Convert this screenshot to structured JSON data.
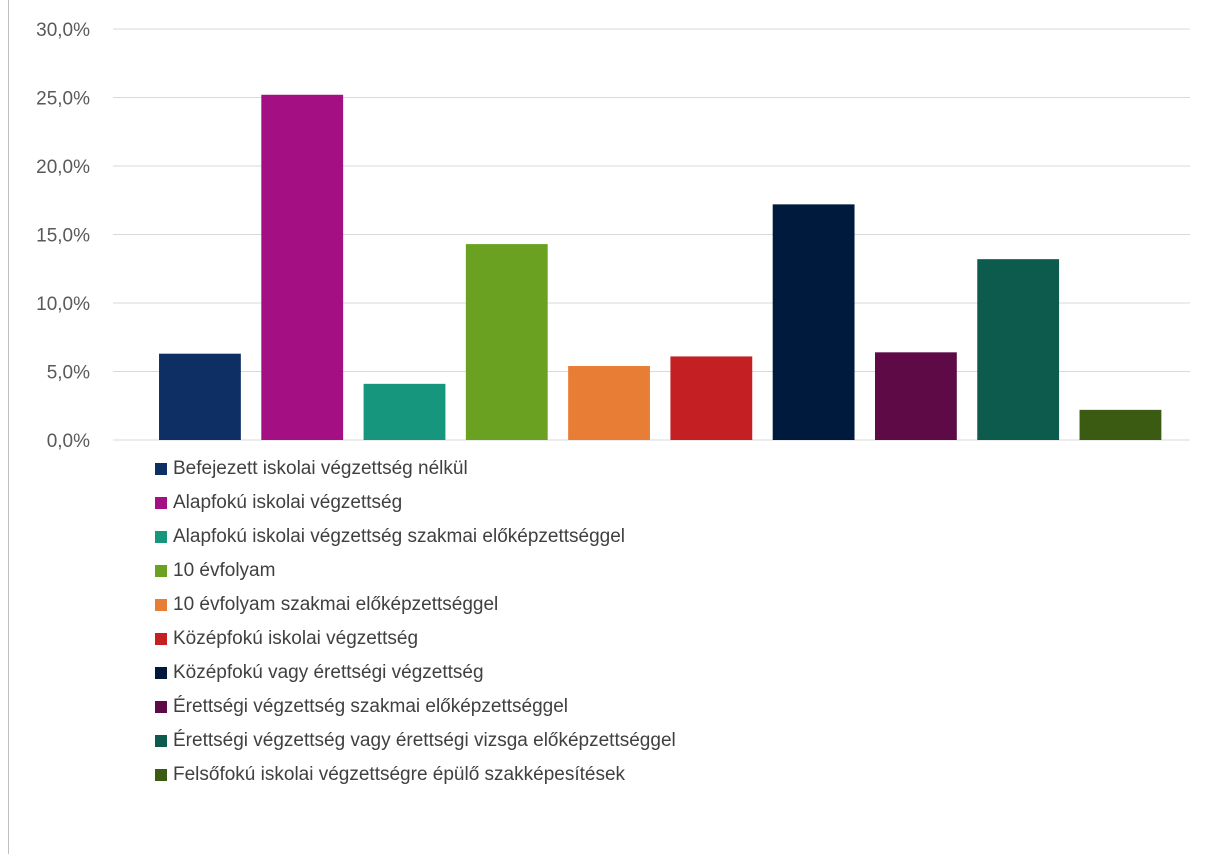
{
  "chart_data": {
    "type": "bar",
    "title": "",
    "xlabel": "",
    "ylabel": "",
    "ylim": [
      0,
      30
    ],
    "y_ticks": [
      "0,0%",
      "5,0%",
      "10,0%",
      "15,0%",
      "20,0%",
      "25,0%",
      "30,0%"
    ],
    "y_tick_values": [
      0,
      5,
      10,
      15,
      20,
      25,
      30
    ],
    "grid": true,
    "legend_position": "bottom",
    "series": [
      {
        "name": "Befejezett iskolai végzettség nélkül",
        "value": 6.3,
        "color": "#0e2f63"
      },
      {
        "name": "Alapfokú iskolai végzettség",
        "value": 25.2,
        "color": "#a50f84"
      },
      {
        "name": "Alapfokú iskolai végzettség szakmai előképzettséggel",
        "value": 4.1,
        "color": "#16967c"
      },
      {
        "name": "10 évfolyam",
        "value": 14.3,
        "color": "#6aa121"
      },
      {
        "name": "10 évfolyam szakmai előképzettséggel",
        "value": 5.4,
        "color": "#e87e36"
      },
      {
        "name": "Középfokú iskolai végzettség",
        "value": 6.1,
        "color": "#c42024"
      },
      {
        "name": "Középfokú vagy érettségi végzettség",
        "value": 17.2,
        "color": "#001a3d"
      },
      {
        "name": "Érettségi végzettség szakmai előképzettséggel",
        "value": 6.4,
        "color": "#5d0a47"
      },
      {
        "name": "Érettségi végzettség vagy érettségi vizsga előképzettséggel",
        "value": 13.2,
        "color": "#0c5b4d"
      },
      {
        "name": "Felsőfokú iskolai végzettségre épülő szakképesítések",
        "value": 2.2,
        "color": "#3c5b12"
      }
    ]
  }
}
